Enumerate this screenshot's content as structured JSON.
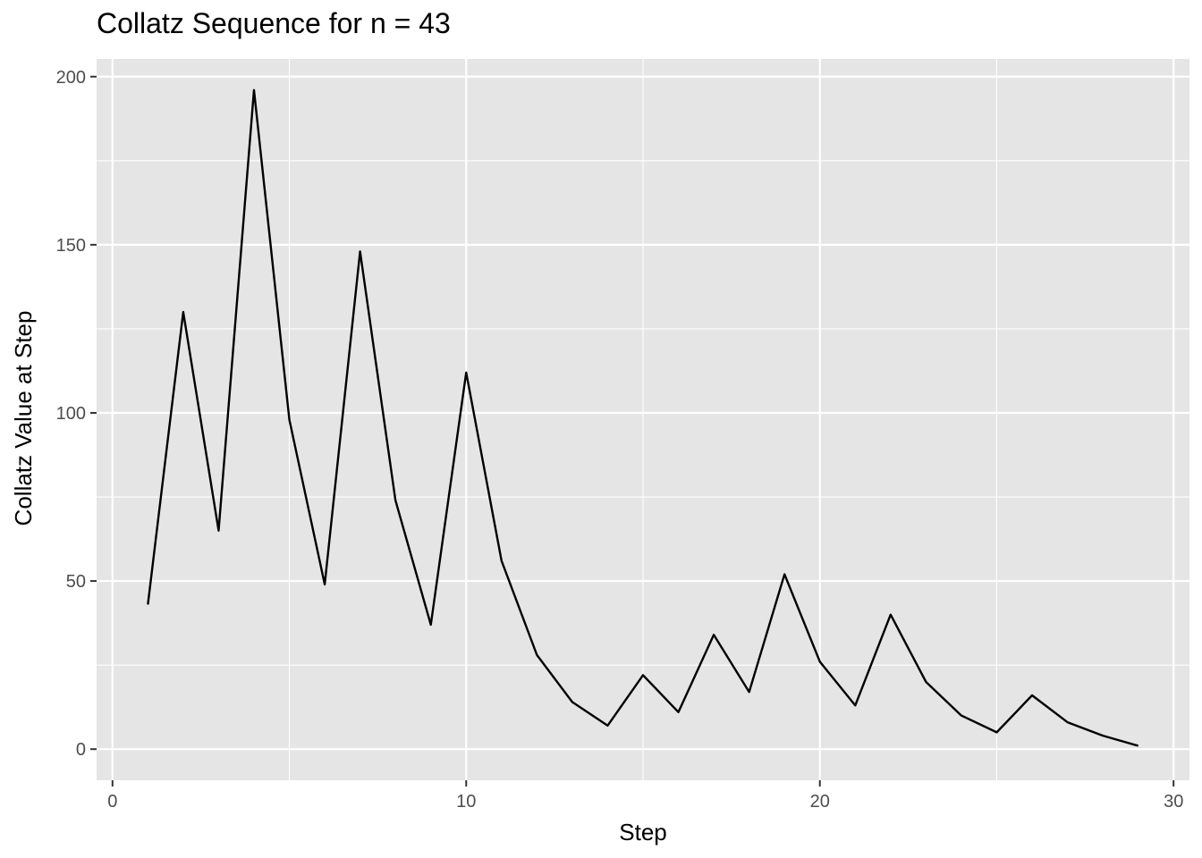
{
  "chart_data": {
    "type": "line",
    "title": "Collatz Sequence for n = 43",
    "xlabel": "Step",
    "ylabel": "Collatz Value at Step",
    "xlim": [
      -0.45,
      30.45
    ],
    "ylim": [
      -9.25,
      205.25
    ],
    "x_ticks": [
      0,
      10,
      20,
      30
    ],
    "y_ticks": [
      0,
      50,
      100,
      150,
      200
    ],
    "x_minor_ticks": [
      5,
      15,
      25
    ],
    "y_minor_ticks": [
      25,
      75,
      125,
      175
    ],
    "grid": true,
    "legend": "none",
    "colors": {
      "panel_background": "#e5e5e5",
      "grid": "#ffffff",
      "line": "#000000",
      "tick_text": "#4d4d4d",
      "tick_mark": "#333333"
    },
    "series": [
      {
        "x": [
          1,
          2,
          3,
          4,
          5,
          6,
          7,
          8,
          9,
          10,
          11,
          12,
          13,
          14,
          15,
          16,
          17,
          18,
          19,
          20,
          21,
          22,
          23,
          24,
          25,
          26,
          27,
          28,
          29
        ],
        "values": [
          43,
          130,
          65,
          196,
          98,
          49,
          148,
          74,
          37,
          112,
          56,
          28,
          14,
          7,
          22,
          11,
          34,
          17,
          52,
          26,
          13,
          40,
          20,
          10,
          5,
          16,
          8,
          4,
          1
        ]
      }
    ]
  }
}
